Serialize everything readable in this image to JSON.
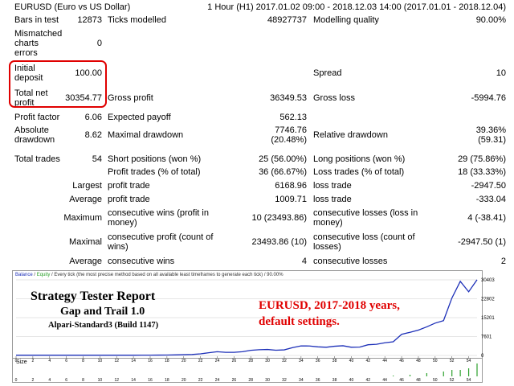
{
  "header": {
    "symbol": "EURUSD (Euro vs US Dollar)",
    "period": "1 Hour (H1) 2017.01.02 09:00 - 2018.12.03 14:00 (2017.01.01 - 2018.12.04)"
  },
  "rows": {
    "bars_label": "Bars in test",
    "bars_value": "12873",
    "ticks_label": "Ticks modelled",
    "ticks_value": "48927737",
    "quality_label": "Modelling quality",
    "quality_value": "90.00%",
    "mismatch_label_1": "Mismatched",
    "mismatch_label_2": "charts",
    "mismatch_label_3": "errors",
    "mismatch_value": "0",
    "deposit_label_1": "Initial",
    "deposit_label_2": "deposit",
    "deposit_value": "100.00",
    "spread_label": "Spread",
    "spread_value": "10",
    "netprofit_label_1": "Total net",
    "netprofit_label_2": "profit",
    "netprofit_value": "30354.77",
    "grossprofit_label": "Gross profit",
    "grossprofit_value": "36349.53",
    "grossloss_label": "Gross loss",
    "grossloss_value": "-5994.76",
    "pf_label": "Profit factor",
    "pf_value": "6.06",
    "payoff_label": "Expected payoff",
    "payoff_value": "562.13",
    "absdd_label_1": "Absolute",
    "absdd_label_2": "drawdown",
    "absdd_value": "8.62",
    "maxdd_label": "Maximal drawdown",
    "maxdd_value_1": "7746.76",
    "maxdd_value_2": "(20.48%)",
    "reldd_label": "Relative drawdown",
    "reldd_value_1": "39.36%",
    "reldd_value_2": "(59.31)",
    "trades_label": "Total trades",
    "trades_value": "54",
    "short_label": "Short positions (won %)",
    "short_value": "25 (56.00%)",
    "long_label": "Long positions (won %)",
    "long_value": "29 (75.86%)",
    "ptrades_label": "Profit trades (% of total)",
    "ptrades_value": "36 (66.67%)",
    "ltrades_label": "Loss trades (% of total)",
    "ltrades_value": "18 (33.33%)",
    "largest_label": "Largest",
    "largest_profit_label": "profit trade",
    "largest_profit_value": "6168.96",
    "largest_loss_label": "loss trade",
    "largest_loss_value": "-2947.50",
    "average_label": "Average",
    "average_profit_label": "profit trade",
    "average_profit_value": "1009.71",
    "average_loss_label": "loss trade",
    "average_loss_value": "-333.04",
    "maximum_label": "Maximum",
    "mcw_label_1": "consecutive wins (profit in",
    "mcw_label_2": "money)",
    "mcw_value": "10 (23493.86)",
    "mcl_label_1": "consecutive losses (loss in",
    "mcl_label_2": "money)",
    "mcl_value": "4 (-38.41)",
    "maximal_label": "Maximal",
    "mcp_label_1": "consecutive profit (count of",
    "mcp_label_2": "wins)",
    "mcp_value": "23493.86 (10)",
    "mcls_label_1": "consecutive loss (count of",
    "mcls_label_2": "losses)",
    "mcls_value": "-2947.50 (1)",
    "average2_label": "Average",
    "acw_label": "consecutive wins",
    "acw_value": "4",
    "acl_label": "consecutive losses",
    "acl_value": "2"
  },
  "chart_caption": {
    "balance": "Balance",
    "sep": " / ",
    "equity": "Equity",
    "rest": " / Every tick (the most precise method based on all available least timeframes to generate each tick) / 90.00%"
  },
  "overlay": {
    "title": "Strategy Tester Report",
    "ea": "Gap and Trail 1.0",
    "server": "Alpari-Standard3 (Build 1147)",
    "note_1": "EURUSD,  2017-2018 years,",
    "note_2": "default settings."
  },
  "size_label": "Size",
  "colors": {
    "accent_red": "#e00000",
    "balance_line": "#1c2fb8",
    "size_bars": "#2aa02a",
    "equity_label": "#2aa02a"
  },
  "chart_data": {
    "type": "line",
    "series": [
      {
        "name": "Balance",
        "values": [
          100,
          100,
          100,
          100,
          100,
          100,
          100,
          100,
          100,
          100,
          100,
          100,
          100,
          100,
          100,
          110,
          120,
          140,
          160,
          220,
          300,
          380,
          640,
          1100,
          1500,
          1250,
          1250,
          1500,
          2050,
          2300,
          2400,
          2100,
          2250,
          3150,
          3850,
          3800,
          3450,
          3300,
          3700,
          3900,
          3300,
          3350,
          4300,
          4500,
          5100,
          5500,
          8500,
          9300,
          10200,
          11500,
          13000,
          14000,
          23100,
          29800,
          25600,
          30454
        ]
      }
    ],
    "x": [
      0,
      1,
      2,
      3,
      4,
      5,
      6,
      7,
      8,
      9,
      10,
      11,
      12,
      13,
      14,
      15,
      16,
      17,
      18,
      19,
      20,
      21,
      22,
      23,
      24,
      25,
      26,
      27,
      28,
      29,
      30,
      31,
      32,
      33,
      34,
      35,
      36,
      37,
      38,
      39,
      40,
      41,
      42,
      43,
      44,
      45,
      46,
      47,
      48,
      49,
      50,
      51,
      52,
      53,
      54,
      55
    ],
    "x_ticks": [
      "0",
      "2",
      "4",
      "6",
      "8",
      "10",
      "12",
      "14",
      "16",
      "18",
      "20",
      "22",
      "24",
      "26",
      "28",
      "30",
      "32",
      "34",
      "36",
      "38",
      "40",
      "42",
      "44",
      "46",
      "48",
      "50",
      "52",
      "54"
    ],
    "y_ticks": [
      "30403",
      "22802",
      "15201",
      "7601",
      "0"
    ],
    "ylim": [
      0,
      30403
    ],
    "lots": [
      0,
      0,
      0,
      0,
      0,
      0,
      0,
      0,
      0,
      0,
      0,
      0,
      0,
      0,
      0,
      0,
      0,
      0,
      0,
      0,
      0,
      0,
      0,
      0,
      0,
      0,
      0,
      0,
      0,
      0,
      0,
      0,
      0,
      0,
      0,
      0,
      0,
      0,
      0,
      0,
      0,
      0,
      0,
      0,
      0,
      0.5,
      0,
      1,
      0,
      2,
      0,
      3,
      4,
      4,
      5,
      8
    ]
  }
}
